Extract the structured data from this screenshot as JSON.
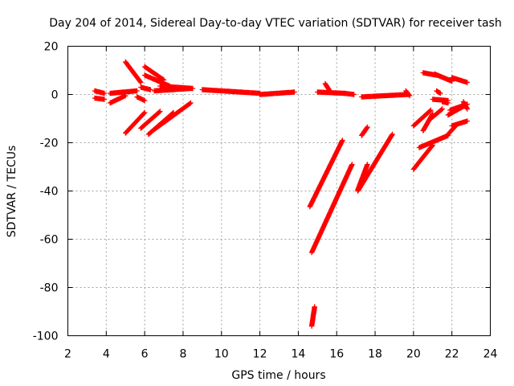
{
  "chart_data": {
    "type": "scatter",
    "title": "Day 204 of 2014, Sidereal Day-to-day VTEC variation (SDTVAR) for receiver tash",
    "xlabel": "GPS time / hours",
    "ylabel": "SDTVAR / TECUs",
    "xlim": [
      2,
      24
    ],
    "ylim": [
      -100,
      20
    ],
    "xticks": [
      "2",
      "4",
      "6",
      "8",
      "10",
      "12",
      "14",
      "16",
      "18",
      "20",
      "22",
      "24"
    ],
    "yticks": [
      "20",
      "0",
      "-20",
      "-40",
      "-60",
      "-80",
      "-100"
    ],
    "grid": true,
    "marker": "plus",
    "marker_color": "#ff0000",
    "segments": [
      {
        "x": [
          3.4,
          3.9
        ],
        "y": [
          1.5,
          0.5
        ]
      },
      {
        "x": [
          3.4,
          3.9
        ],
        "y": [
          -1.5,
          -2.0
        ]
      },
      {
        "x": [
          4.2,
          5.0
        ],
        "y": [
          -3.5,
          -0.5
        ]
      },
      {
        "x": [
          4.2,
          5.6
        ],
        "y": [
          0.5,
          1.5
        ]
      },
      {
        "x": [
          5.0,
          5.8
        ],
        "y": [
          13.5,
          5.0
        ]
      },
      {
        "x": [
          5.8,
          6.3
        ],
        "y": [
          3.0,
          2.0
        ]
      },
      {
        "x": [
          5.6,
          6.0
        ],
        "y": [
          -1.0,
          -2.5
        ]
      },
      {
        "x": [
          6.0,
          7.0
        ],
        "y": [
          11.5,
          6.0
        ]
      },
      {
        "x": [
          6.0,
          7.3
        ],
        "y": [
          8.0,
          3.5
        ]
      },
      {
        "x": [
          6.8,
          8.5
        ],
        "y": [
          3.5,
          2.5
        ]
      },
      {
        "x": [
          6.5,
          8.4
        ],
        "y": [
          1.5,
          2.5
        ]
      },
      {
        "x": [
          5.0,
          6.0
        ],
        "y": [
          -16.0,
          -7.5
        ]
      },
      {
        "x": [
          5.8,
          6.8
        ],
        "y": [
          -14.0,
          -7.0
        ]
      },
      {
        "x": [
          6.2,
          7.5
        ],
        "y": [
          -16.5,
          -7.5
        ]
      },
      {
        "x": [
          6.5,
          8.4
        ],
        "y": [
          -14.5,
          -3.5
        ]
      },
      {
        "x": [
          9.0,
          12.0
        ],
        "y": [
          2.0,
          0.5
        ]
      },
      {
        "x": [
          12.0,
          13.8
        ],
        "y": [
          0.0,
          1.0
        ]
      },
      {
        "x": [
          15.0,
          16.4
        ],
        "y": [
          1.0,
          0.5
        ]
      },
      {
        "x": [
          15.4,
          15.6
        ],
        "y": [
          4.5,
          2.0
        ]
      },
      {
        "x": [
          16.4,
          16.9
        ],
        "y": [
          0.5,
          0.0
        ]
      },
      {
        "x": [
          17.3,
          19.7
        ],
        "y": [
          -1.0,
          0.0
        ]
      },
      {
        "x": [
          19.6,
          19.8
        ],
        "y": [
          1.5,
          -0.5
        ]
      },
      {
        "x": [
          14.6,
          16.3
        ],
        "y": [
          -46.5,
          -19.0
        ]
      },
      {
        "x": [
          14.7,
          16.8
        ],
        "y": [
          -65.5,
          -29.0
        ]
      },
      {
        "x": [
          14.7,
          14.85
        ],
        "y": [
          -96.0,
          -88.0
        ]
      },
      {
        "x": [
          17.1,
          17.6
        ],
        "y": [
          -39.5,
          -29.0
        ]
      },
      {
        "x": [
          17.3,
          17.6
        ],
        "y": [
          -17.0,
          -13.5
        ]
      },
      {
        "x": [
          17.1,
          18.9
        ],
        "y": [
          -40.0,
          -16.5
        ]
      },
      {
        "x": [
          20.0,
          21.0
        ],
        "y": [
          -31.0,
          -21.0
        ]
      },
      {
        "x": [
          20.3,
          21.8
        ],
        "y": [
          -22.0,
          -17.0
        ]
      },
      {
        "x": [
          20.0,
          20.9
        ],
        "y": [
          -13.0,
          -6.5
        ]
      },
      {
        "x": [
          20.5,
          21.0
        ],
        "y": [
          -15.0,
          -8.0
        ]
      },
      {
        "x": [
          20.9,
          21.5
        ],
        "y": [
          -10.0,
          -6.0
        ]
      },
      {
        "x": [
          21.0,
          21.8
        ],
        "y": [
          -2.0,
          -2.5
        ]
      },
      {
        "x": [
          21.2,
          21.4
        ],
        "y": [
          1.5,
          0.5
        ]
      },
      {
        "x": [
          20.5,
          21.2
        ],
        "y": [
          9.0,
          8.0
        ]
      },
      {
        "x": [
          21.1,
          22.0
        ],
        "y": [
          8.5,
          5.5
        ]
      },
      {
        "x": [
          21.9,
          22.8
        ],
        "y": [
          -6.5,
          -4.0
        ]
      },
      {
        "x": [
          21.8,
          22.7
        ],
        "y": [
          -8.5,
          -4.5
        ]
      },
      {
        "x": [
          22.0,
          22.8
        ],
        "y": [
          -13.0,
          -11.0
        ]
      },
      {
        "x": [
          21.8,
          22.2
        ],
        "y": [
          -16.5,
          -13.0
        ]
      },
      {
        "x": [
          22.6,
          22.8
        ],
        "y": [
          -3.0,
          -6.0
        ]
      },
      {
        "x": [
          22.0,
          22.8
        ],
        "y": [
          7.0,
          5.0
        ]
      },
      {
        "x": [
          21.5,
          21.8
        ],
        "y": [
          -3.0,
          -3.5
        ]
      }
    ]
  }
}
